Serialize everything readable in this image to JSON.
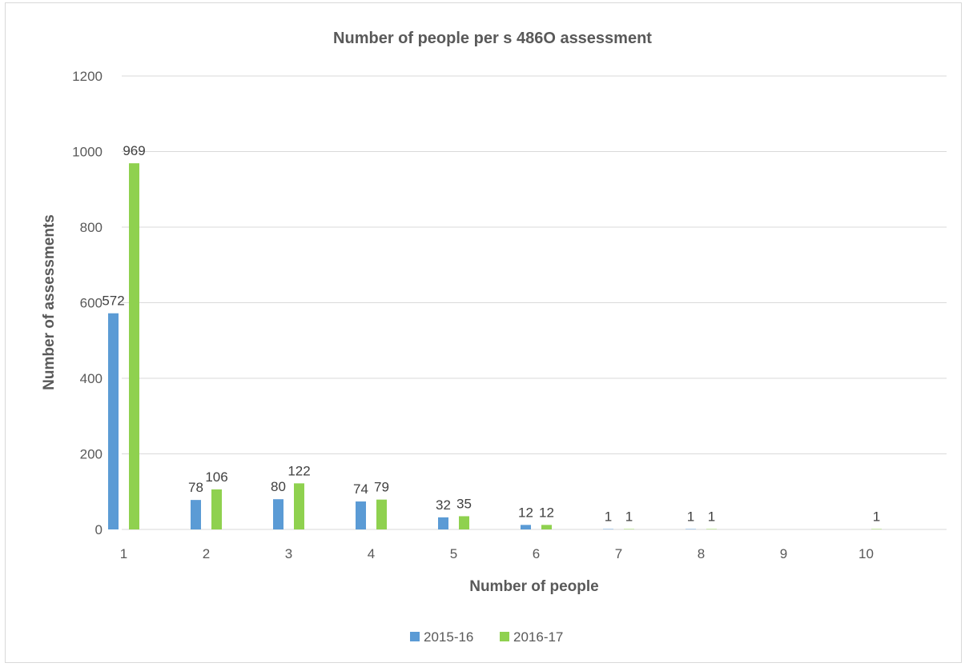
{
  "chart_data": {
    "type": "bar",
    "title": "Number of people per s 486O assessment",
    "xlabel": "Number of people",
    "ylabel": "Number of assessments",
    "categories": [
      "1",
      "2",
      "3",
      "4",
      "5",
      "6",
      "7",
      "8",
      "9",
      "10"
    ],
    "series": [
      {
        "name": "2015-16",
        "color": "#5b9bd5",
        "values": [
          572,
          78,
          80,
          74,
          32,
          12,
          1,
          1,
          null,
          null
        ]
      },
      {
        "name": "2016-17",
        "color": "#8fd14f",
        "values": [
          969,
          106,
          122,
          79,
          35,
          12,
          1,
          1,
          null,
          1
        ]
      }
    ],
    "ylim": [
      0,
      1200
    ],
    "yticks": [
      "0",
      "200",
      "400",
      "600",
      "800",
      "1000",
      "1200"
    ],
    "grid": true,
    "legend_position": "bottom"
  }
}
